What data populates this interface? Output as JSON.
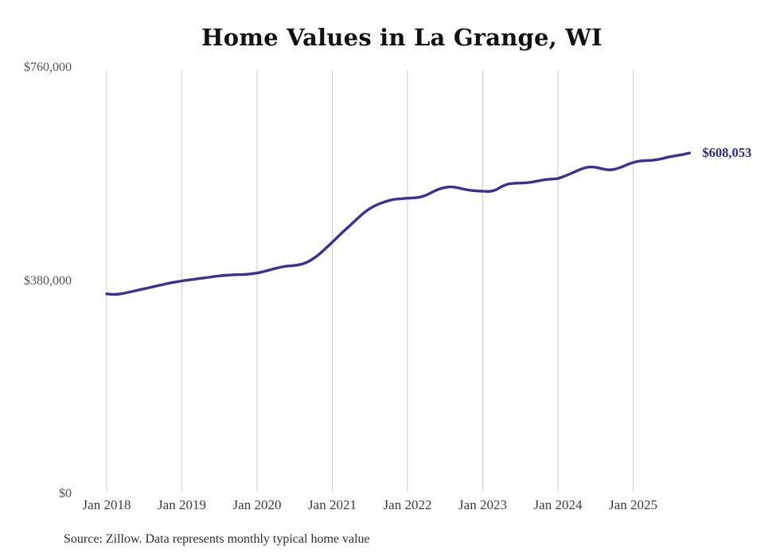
{
  "title": "Home Values in La Grange, WI",
  "source_note": "Source: Zillow. Data represents monthly typical home value",
  "final_value_label": "$608,053",
  "colors": {
    "line": "#3a3193",
    "final_label": "#2c2a84",
    "gridline": "#cccccc",
    "title_text": "#111111",
    "x_tick_text": "#3d3d3d",
    "y_tick_text": "#525252",
    "source_text": "#2d2d2d",
    "background": "#ffffff"
  },
  "chart_data": {
    "type": "line",
    "title": "Home Values in La Grange, WI",
    "xlabel": "",
    "ylabel": "",
    "ylim": [
      0,
      760000
    ],
    "grid": "vertical",
    "legend": "none",
    "final_value": 608053,
    "final_value_label": "$608,053",
    "x_ticks": [
      {
        "label": "Jan 2018",
        "month_index": 0
      },
      {
        "label": "Jan 2019",
        "month_index": 12
      },
      {
        "label": "Jan 2020",
        "month_index": 24
      },
      {
        "label": "Jan 2021",
        "month_index": 36
      },
      {
        "label": "Jan 2022",
        "month_index": 48
      },
      {
        "label": "Jan 2023",
        "month_index": 60
      },
      {
        "label": "Jan 2024",
        "month_index": 72
      },
      {
        "label": "Jan 2025",
        "month_index": 84
      }
    ],
    "y_ticks": [
      {
        "label": "$0",
        "value": 0
      },
      {
        "label": "$380,000",
        "value": 380000
      },
      {
        "label": "$760,000",
        "value": 760000
      }
    ],
    "series": [
      {
        "name": "Monthly typical home value",
        "start_month": "2018-01",
        "end_month": "2025-10",
        "values": [
          357000,
          356000,
          356500,
          358500,
          361000,
          363500,
          366000,
          368500,
          371000,
          373500,
          376000,
          378000,
          380000,
          381500,
          383000,
          384500,
          386000,
          387500,
          389000,
          390000,
          390800,
          391200,
          391500,
          392500,
          394000,
          396500,
          399500,
          402500,
          405000,
          406500,
          407500,
          409500,
          413500,
          420000,
          428500,
          438500,
          449000,
          460000,
          470500,
          480500,
          491000,
          501000,
          509000,
          515000,
          519500,
          523000,
          525500,
          526500,
          527500,
          528000,
          529500,
          533000,
          538500,
          543500,
          546500,
          547500,
          546000,
          543500,
          541500,
          540500,
          540000,
          539500,
          542000,
          548000,
          552500,
          554000,
          554500,
          555000,
          556500,
          558500,
          560500,
          561500,
          562500,
          566500,
          571000,
          576000,
          580500,
          583000,
          582500,
          580000,
          578000,
          579000,
          582500,
          587000,
          591000,
          593500,
          594500,
          595000,
          596500,
          599000,
          601500,
          603500,
          605500,
          608053
        ]
      }
    ]
  }
}
